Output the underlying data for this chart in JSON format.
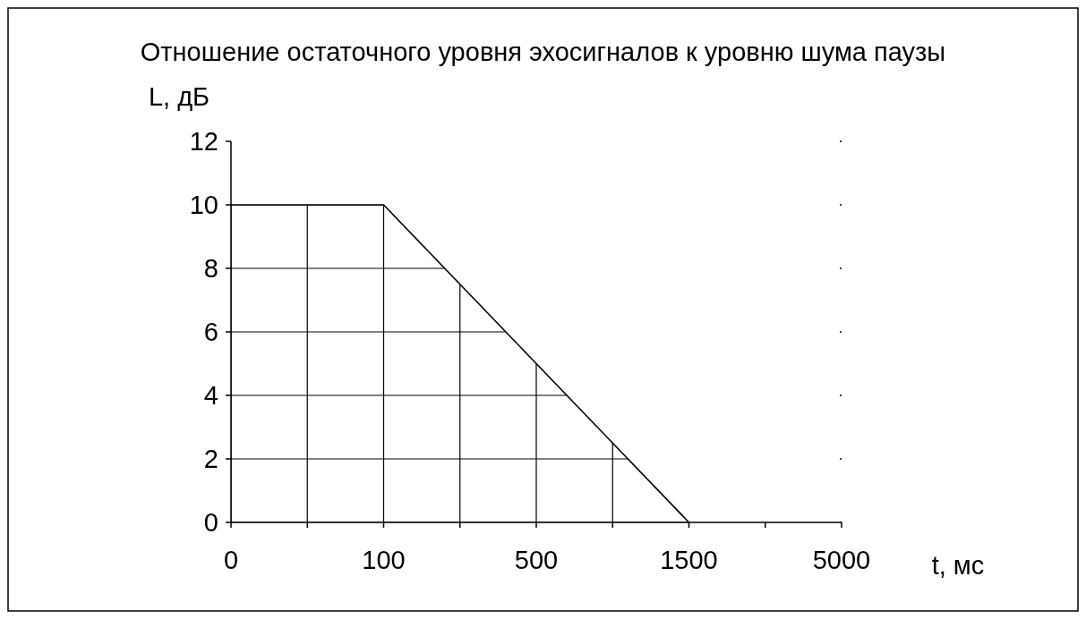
{
  "chart_data": {
    "type": "line",
    "title": "Отношение остаточного уровня эхосигналов к уровню шума паузы",
    "ylabel": "L, дБ",
    "xlabel": "t, мс",
    "categories": [
      "0",
      null,
      "100",
      null,
      "500",
      null,
      "1500",
      null,
      "5000"
    ],
    "series": [
      {
        "color": "#000000",
        "values": [
          10,
          10,
          10,
          7.5,
          5,
          2.5,
          0,
          null,
          null
        ]
      }
    ],
    "ylim": [
      0,
      12
    ],
    "yticks": [
      0,
      2,
      4,
      6,
      8,
      10,
      12
    ],
    "grid": true,
    "marker": "none",
    "line_style": "solid"
  }
}
